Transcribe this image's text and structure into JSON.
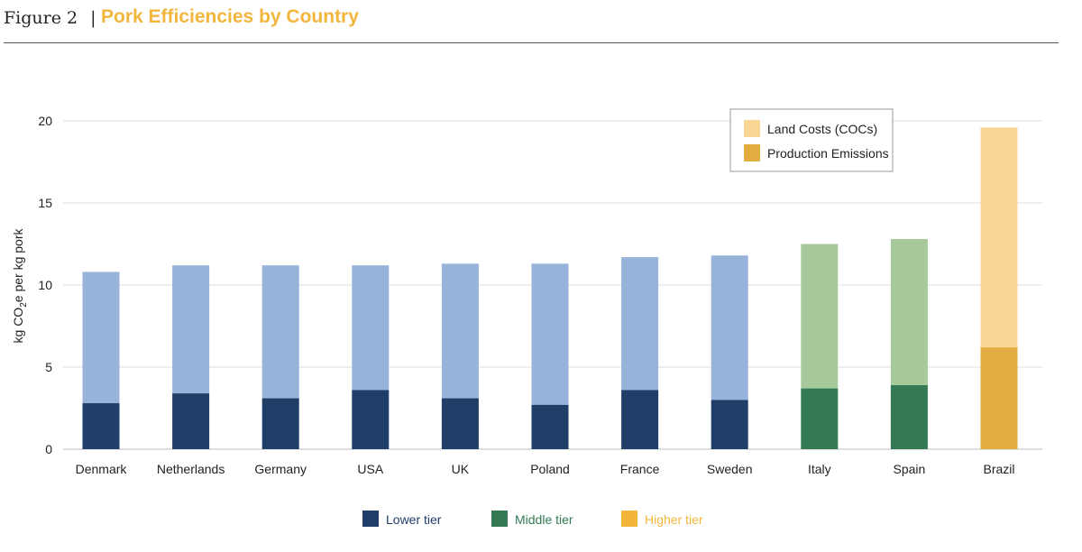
{
  "header": {
    "figure_label": "Figure 2",
    "separator": "|",
    "title": "Pork Efficiencies by Country",
    "title_color": "#f2b63d"
  },
  "chart_data": {
    "type": "bar",
    "stacked": true,
    "ylabel_parts": [
      "kg CO",
      "2",
      "e per kg pork"
    ],
    "ylim": [
      0,
      20
    ],
    "yticks": [
      0,
      5,
      10,
      15,
      20
    ],
    "grid": true,
    "categories": [
      "Denmark",
      "Netherlands",
      "Germany",
      "USA",
      "UK",
      "Poland",
      "France",
      "Sweden",
      "Italy",
      "Spain",
      "Brazil"
    ],
    "tiers": [
      "lower",
      "lower",
      "lower",
      "lower",
      "lower",
      "lower",
      "lower",
      "lower",
      "middle",
      "middle",
      "higher"
    ],
    "series": [
      {
        "name": "Production Emissions",
        "values": [
          2.8,
          3.4,
          3.1,
          3.6,
          3.1,
          2.7,
          3.6,
          3.0,
          3.7,
          3.9,
          6.2
        ]
      },
      {
        "name": "Land Costs (COCs)",
        "values": [
          8.0,
          7.8,
          8.1,
          7.6,
          8.2,
          8.6,
          8.1,
          8.8,
          8.8,
          8.9,
          13.4
        ]
      }
    ],
    "tier_colors": {
      "lower": {
        "production": "#1f3f68",
        "land": "#97b3da"
      },
      "middle": {
        "production": "#337a54",
        "land": "#a5c99a"
      },
      "higher": {
        "production": "#e2ac40",
        "land": "#f9d694"
      }
    },
    "series_legend": {
      "placement": "top-right",
      "items": [
        {
          "label": "Land Costs (COCs)",
          "color": "#f9d694"
        },
        {
          "label": "Production Emissions",
          "color": "#e2ac40"
        }
      ]
    },
    "tier_legend": {
      "placement": "bottom",
      "items": [
        {
          "label": "Lower tier",
          "color": "#1f3f68",
          "text_color": "#1f3f68"
        },
        {
          "label": "Middle tier",
          "color": "#337a54",
          "text_color": "#337a54"
        },
        {
          "label": "Higher tier",
          "color": "#f2b63d",
          "text_color": "#f2b63d"
        }
      ]
    }
  }
}
